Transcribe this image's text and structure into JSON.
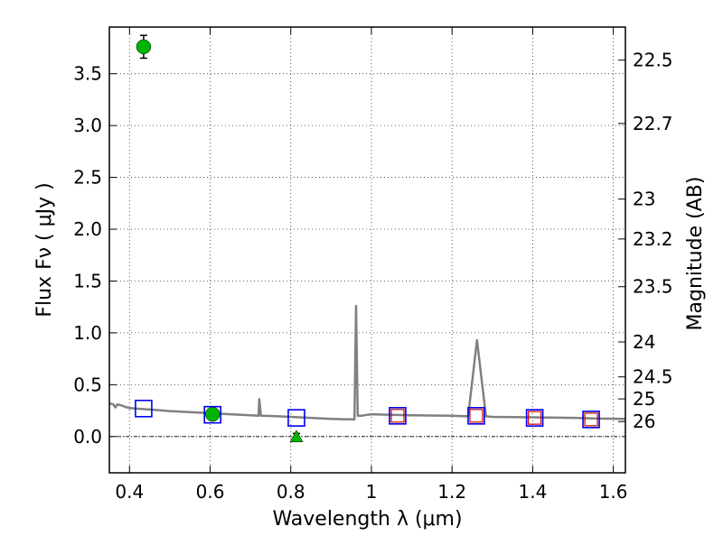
{
  "chart_data": {
    "type": "scatter",
    "xlabel": "Wavelength  λ (μm)",
    "ylabel": "Flux  Fν  ( μJy )",
    "y2label": "Magnitude (AB)",
    "xlim": [
      0.35,
      1.63
    ],
    "ylim": [
      -0.35,
      3.95
    ],
    "x_ticks": [
      0.4,
      0.6,
      0.8,
      1.0,
      1.2,
      1.4,
      1.6
    ],
    "x_tick_labels": [
      "0.4",
      "0.6",
      "0.8",
      "1",
      "1.2",
      "1.4",
      "1.6"
    ],
    "y_ticks": [
      0.0,
      0.5,
      1.0,
      1.5,
      2.0,
      2.5,
      3.0,
      3.5
    ],
    "y_tick_labels": [
      "0.0",
      "0.5",
      "1.0",
      "1.5",
      "2.0",
      "2.5",
      "3.0",
      "3.5"
    ],
    "magnitude_ticks": [
      {
        "label": "22.5",
        "mag": 22.5
      },
      {
        "label": "22.7",
        "mag": 22.7
      },
      {
        "label": "23",
        "mag": 23.0
      },
      {
        "label": "23.2",
        "mag": 23.2
      },
      {
        "label": "23.5",
        "mag": 23.5
      },
      {
        "label": "24",
        "mag": 24.0
      },
      {
        "label": "24.5",
        "mag": 24.5
      },
      {
        "label": "25",
        "mag": 25.0
      },
      {
        "label": "26",
        "mag": 26.0
      }
    ],
    "grid": true,
    "zero_line": true,
    "series": [
      {
        "kind": "line",
        "color": "#808080",
        "points": [
          [
            0.35,
            0.32
          ],
          [
            0.36,
            0.31
          ],
          [
            0.365,
            0.28
          ],
          [
            0.37,
            0.31
          ],
          [
            0.38,
            0.3
          ],
          [
            0.39,
            0.285
          ],
          [
            0.4,
            0.275
          ],
          [
            0.43,
            0.265
          ],
          [
            0.47,
            0.255
          ],
          [
            0.5,
            0.245
          ],
          [
            0.55,
            0.235
          ],
          [
            0.6,
            0.225
          ],
          [
            0.65,
            0.215
          ],
          [
            0.7,
            0.205
          ],
          [
            0.72,
            0.2
          ],
          [
            0.722,
            0.36
          ],
          [
            0.726,
            0.2
          ],
          [
            0.75,
            0.198
          ],
          [
            0.8,
            0.19
          ],
          [
            0.85,
            0.18
          ],
          [
            0.9,
            0.17
          ],
          [
            0.95,
            0.165
          ],
          [
            0.958,
            0.165
          ],
          [
            0.962,
            1.26
          ],
          [
            0.966,
            0.2
          ],
          [
            0.975,
            0.2
          ],
          [
            0.99,
            0.21
          ],
          [
            1.0,
            0.215
          ],
          [
            1.05,
            0.21
          ],
          [
            1.1,
            0.205
          ],
          [
            1.2,
            0.2
          ],
          [
            1.24,
            0.195
          ],
          [
            1.262,
            0.93
          ],
          [
            1.284,
            0.195
          ],
          [
            1.3,
            0.19
          ],
          [
            1.4,
            0.185
          ],
          [
            1.5,
            0.18
          ],
          [
            1.55,
            0.175
          ],
          [
            1.63,
            0.17
          ]
        ]
      },
      {
        "kind": "marker",
        "marker": "circle",
        "color": "#00b400",
        "points": [
          {
            "x": 0.435,
            "y": 3.76,
            "err": 0.11
          },
          {
            "x": 0.606,
            "y": 0.215,
            "err": 0.04
          }
        ]
      },
      {
        "kind": "marker",
        "marker": "triangle",
        "color": "#00b400",
        "points": [
          {
            "x": 0.814,
            "y": 0.0,
            "err": 0.03
          }
        ]
      },
      {
        "kind": "marker",
        "marker": "square",
        "color": "#0000ee",
        "points": [
          {
            "x": 0.435,
            "y": 0.27
          },
          {
            "x": 0.606,
            "y": 0.21
          },
          {
            "x": 0.814,
            "y": 0.18
          },
          {
            "x": 1.065,
            "y": 0.2
          },
          {
            "x": 1.26,
            "y": 0.2
          },
          {
            "x": 1.405,
            "y": 0.18
          },
          {
            "x": 1.545,
            "y": 0.165
          }
        ]
      },
      {
        "kind": "marker",
        "marker": "square",
        "color": "#cc0000",
        "points": [
          {
            "x": 1.065,
            "y": 0.2
          },
          {
            "x": 1.26,
            "y": 0.2
          },
          {
            "x": 1.405,
            "y": 0.18
          },
          {
            "x": 1.545,
            "y": 0.165
          }
        ]
      }
    ]
  }
}
